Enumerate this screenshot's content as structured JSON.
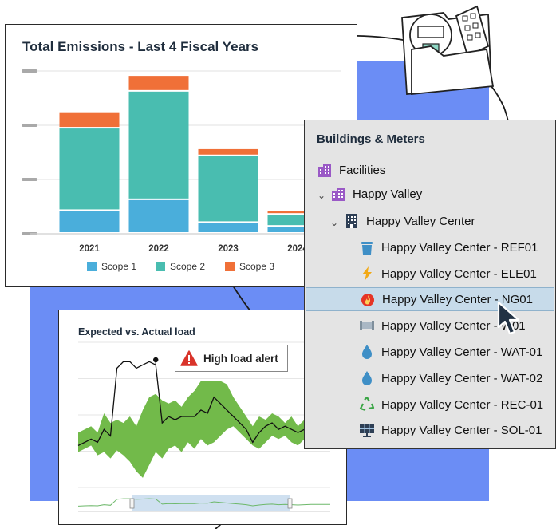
{
  "emissions": {
    "title": "Total Emissions - Last 4 Fiscal Years",
    "colors": {
      "Scope 1": "#4aaedb",
      "Scope 2": "#49bdb0",
      "Scope 3": "#f07038"
    },
    "legend": [
      {
        "label": "Scope 1",
        "color": "#4aaedb"
      },
      {
        "label": "Scope 2",
        "color": "#49bdb0"
      },
      {
        "label": "Scope 3",
        "color": "#f07038"
      }
    ]
  },
  "chart_data": [
    {
      "type": "bar",
      "title": "Total Emissions - Last 4 Fiscal Years",
      "stacked": true,
      "categories": [
        "2021",
        "2022",
        "2023",
        "2024"
      ],
      "series": [
        {
          "name": "Scope 1",
          "values": [
            4.2,
            6.2,
            2.0,
            1.3
          ]
        },
        {
          "name": "Scope 2",
          "values": [
            15.2,
            20.0,
            12.3,
            2.2
          ]
        },
        {
          "name": "Scope 3",
          "values": [
            3.0,
            2.9,
            1.3,
            0.7
          ]
        }
      ],
      "ylim": [
        0,
        30
      ],
      "grid": true,
      "legend_position": "bottom"
    },
    {
      "type": "area",
      "title": "Expected vs. Actual load",
      "x": [
        0,
        1,
        2,
        3,
        4,
        5,
        6,
        7,
        8,
        9,
        10,
        11,
        12,
        13,
        14,
        15,
        16,
        17,
        18,
        19,
        20,
        21,
        22,
        23,
        24,
        25,
        26,
        27,
        28,
        29,
        30,
        31,
        32,
        33,
        34,
        35,
        36,
        37,
        38,
        39
      ],
      "series": [
        {
          "name": "expected_low",
          "values": [
            22,
            24,
            26,
            20,
            22,
            18,
            23,
            20,
            16,
            10,
            6,
            14,
            22,
            18,
            24,
            26,
            22,
            28,
            24,
            30,
            26,
            28,
            32,
            36,
            38,
            34,
            30,
            26,
            24,
            28,
            32,
            30,
            32,
            28,
            26,
            30,
            32,
            30,
            30,
            28
          ]
        },
        {
          "name": "expected_high",
          "values": [
            34,
            36,
            38,
            34,
            46,
            40,
            42,
            40,
            44,
            38,
            48,
            56,
            58,
            54,
            52,
            54,
            50,
            56,
            60,
            66,
            66,
            66,
            66,
            64,
            56,
            50,
            44,
            38,
            44,
            42,
            46,
            44,
            40,
            44,
            38,
            42,
            44,
            44,
            44,
            46
          ]
        },
        {
          "name": "actual",
          "values": [
            26,
            28,
            30,
            28,
            36,
            32,
            74,
            78,
            78,
            74,
            76,
            78,
            76,
            40,
            44,
            42,
            44,
            44,
            44,
            48,
            46,
            56,
            52,
            48,
            44,
            40,
            36,
            28,
            34,
            38,
            40,
            36,
            38,
            36,
            34,
            36,
            38,
            38,
            38,
            38
          ]
        }
      ],
      "annotation": "High load alert",
      "range_selector": true
    }
  ],
  "load": {
    "title": "Expected vs. Actual load",
    "alert": "High load alert",
    "band_color": "#72ba4a",
    "line_color": "#111111"
  },
  "tree": {
    "title": "Buildings & Meters",
    "items": [
      {
        "label": "Facilities",
        "icon": "building-icon"
      },
      {
        "label": "Happy Valley",
        "icon": "building-icon"
      },
      {
        "label": "Happy Valley Center",
        "icon": "office-building-icon"
      },
      {
        "label": "Happy Valley Center - REF01",
        "icon": "trash-can-icon"
      },
      {
        "label": "Happy Valley Center - ELE01",
        "icon": "lightning-icon"
      },
      {
        "label": "Happy Valley Center - NG01",
        "icon": "flame-icon"
      },
      {
        "label": "Happy Valley Center - W01",
        "icon": "pipe-icon"
      },
      {
        "label": "Happy Valley Center - WAT-01",
        "icon": "water-drop-icon"
      },
      {
        "label": "Happy Valley Center - WAT-02",
        "icon": "water-drop-icon"
      },
      {
        "label": "Happy Valley Center - REC-01",
        "icon": "recycle-icon"
      },
      {
        "label": "Happy Valley Center - SOL-01",
        "icon": "solar-panel-icon"
      }
    ],
    "selected": "Happy Valley Center - NG01"
  }
}
